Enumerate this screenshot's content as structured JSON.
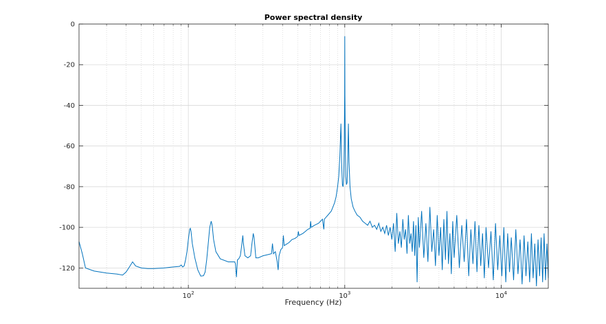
{
  "chart_data": {
    "type": "line",
    "title": "Power spectral density",
    "xlabel": "Frequency (Hz)",
    "ylabel": "",
    "x_scale": "log",
    "xlim": [
      20,
      20000
    ],
    "ylim": [
      -130,
      0
    ],
    "x_ticks": [
      100,
      1000,
      10000
    ],
    "x_tick_labels": [
      {
        "base": "10",
        "exp": "2"
      },
      {
        "base": "10",
        "exp": "3"
      },
      {
        "base": "10",
        "exp": "4"
      }
    ],
    "y_ticks": [
      0,
      -20,
      -40,
      -60,
      -80,
      -100,
      -120
    ],
    "y_tick_labels": [
      "0",
      "-20",
      "-40",
      "-60",
      "-80",
      "-100",
      "-120"
    ],
    "grid": true,
    "line_color": "#0072bd",
    "series": [
      {
        "points": [
          [
            20,
            -107
          ],
          [
            21,
            -113
          ],
          [
            22,
            -120
          ],
          [
            25,
            -121.5
          ],
          [
            30,
            -122.5
          ],
          [
            35,
            -123
          ],
          [
            38,
            -123.5
          ],
          [
            40,
            -122
          ],
          [
            42,
            -119.5
          ],
          [
            44,
            -117
          ],
          [
            46,
            -119
          ],
          [
            50,
            -120
          ],
          [
            55,
            -120.3
          ],
          [
            60,
            -120.3
          ],
          [
            70,
            -120
          ],
          [
            80,
            -119.5
          ],
          [
            88,
            -119.2
          ],
          [
            90,
            -118.5
          ],
          [
            92,
            -119.5
          ],
          [
            94,
            -119
          ],
          [
            96,
            -116
          ],
          [
            98,
            -112
          ],
          [
            100,
            -106
          ],
          [
            102,
            -101
          ],
          [
            103,
            -100.5
          ],
          [
            104,
            -102
          ],
          [
            106,
            -108
          ],
          [
            110,
            -115
          ],
          [
            115,
            -121
          ],
          [
            120,
            -124
          ],
          [
            125,
            -123.8
          ],
          [
            128,
            -122
          ],
          [
            131,
            -116
          ],
          [
            134,
            -108
          ],
          [
            137,
            -100
          ],
          [
            140,
            -97
          ],
          [
            142,
            -99
          ],
          [
            145,
            -106
          ],
          [
            150,
            -112
          ],
          [
            160,
            -115.5
          ],
          [
            180,
            -117
          ],
          [
            198,
            -117
          ],
          [
            200,
            -118
          ],
          [
            203,
            -124.5
          ],
          [
            206,
            -116
          ],
          [
            210,
            -115.5
          ],
          [
            215,
            -114
          ],
          [
            220,
            -108
          ],
          [
            223,
            -104
          ],
          [
            225,
            -108
          ],
          [
            230,
            -114
          ],
          [
            240,
            -115
          ],
          [
            250,
            -114
          ],
          [
            255,
            -108
          ],
          [
            260,
            -103
          ],
          [
            263,
            -105
          ],
          [
            266,
            -109
          ],
          [
            270,
            -115
          ],
          [
            280,
            -115
          ],
          [
            300,
            -114
          ],
          [
            320,
            -113.5
          ],
          [
            340,
            -113
          ],
          [
            345,
            -108
          ],
          [
            350,
            -113
          ],
          [
            360,
            -112
          ],
          [
            370,
            -117
          ],
          [
            375,
            -121
          ],
          [
            380,
            -114
          ],
          [
            390,
            -111
          ],
          [
            400,
            -110
          ],
          [
            405,
            -104
          ],
          [
            410,
            -109
          ],
          [
            420,
            -108.5
          ],
          [
            440,
            -107.5
          ],
          [
            460,
            -106
          ],
          [
            480,
            -105.5
          ],
          [
            500,
            -104.5
          ],
          [
            505,
            -102
          ],
          [
            510,
            -104
          ],
          [
            540,
            -103
          ],
          [
            560,
            -102
          ],
          [
            580,
            -101
          ],
          [
            600,
            -100.5
          ],
          [
            605,
            -97
          ],
          [
            610,
            -100
          ],
          [
            640,
            -99
          ],
          [
            660,
            -98.5
          ],
          [
            680,
            -98
          ],
          [
            700,
            -97
          ],
          [
            720,
            -96
          ],
          [
            735,
            -101
          ],
          [
            740,
            -96
          ],
          [
            760,
            -95
          ],
          [
            780,
            -94
          ],
          [
            800,
            -93
          ],
          [
            820,
            -92
          ],
          [
            840,
            -90
          ],
          [
            860,
            -88
          ],
          [
            880,
            -85
          ],
          [
            900,
            -80
          ],
          [
            915,
            -75
          ],
          [
            930,
            -65
          ],
          [
            945,
            -49
          ],
          [
            955,
            -68
          ],
          [
            965,
            -79
          ],
          [
            975,
            -80
          ],
          [
            985,
            -75
          ],
          [
            992,
            -60
          ],
          [
            998,
            -35
          ],
          [
            1000,
            -6
          ],
          [
            1002,
            -35
          ],
          [
            1008,
            -60
          ],
          [
            1015,
            -75
          ],
          [
            1025,
            -79
          ],
          [
            1035,
            -78
          ],
          [
            1045,
            -67
          ],
          [
            1055,
            -49
          ],
          [
            1065,
            -68
          ],
          [
            1080,
            -80
          ],
          [
            1100,
            -86
          ],
          [
            1130,
            -90
          ],
          [
            1160,
            -92
          ],
          [
            1200,
            -94
          ],
          [
            1250,
            -95
          ],
          [
            1300,
            -97
          ],
          [
            1350,
            -98
          ],
          [
            1400,
            -99
          ],
          [
            1450,
            -97
          ],
          [
            1500,
            -100
          ],
          [
            1550,
            -99
          ],
          [
            1600,
            -101
          ],
          [
            1650,
            -98
          ],
          [
            1700,
            -102
          ],
          [
            1750,
            -100
          ],
          [
            1800,
            -103
          ],
          [
            1850,
            -99
          ],
          [
            1900,
            -104
          ],
          [
            1950,
            -100
          ],
          [
            2000,
            -106
          ],
          [
            2050,
            -98
          ],
          [
            2100,
            -112
          ],
          [
            2150,
            -93
          ],
          [
            2200,
            -108
          ],
          [
            2250,
            -102
          ],
          [
            2300,
            -110
          ],
          [
            2350,
            -96
          ],
          [
            2400,
            -106
          ],
          [
            2450,
            -101
          ],
          [
            2500,
            -113
          ],
          [
            2550,
            -94
          ],
          [
            2600,
            -108
          ],
          [
            2650,
            -103
          ],
          [
            2700,
            -112
          ],
          [
            2750,
            -97
          ],
          [
            2800,
            -114
          ],
          [
            2850,
            -99
          ],
          [
            2900,
            -127
          ],
          [
            2950,
            -95
          ],
          [
            3000,
            -110
          ],
          [
            3100,
            -92
          ],
          [
            3200,
            -115
          ],
          [
            3300,
            -98
          ],
          [
            3400,
            -117
          ],
          [
            3500,
            -90
          ],
          [
            3600,
            -112
          ],
          [
            3700,
            -101
          ],
          [
            3800,
            -119
          ],
          [
            3900,
            -94
          ],
          [
            4000,
            -114
          ],
          [
            4100,
            -100
          ],
          [
            4200,
            -121
          ],
          [
            4300,
            -96
          ],
          [
            4400,
            -116
          ],
          [
            4500,
            -92
          ],
          [
            4600,
            -118
          ],
          [
            4700,
            -103
          ],
          [
            4800,
            -123
          ],
          [
            4900,
            -97
          ],
          [
            5000,
            -115
          ],
          [
            5200,
            -94
          ],
          [
            5400,
            -120
          ],
          [
            5600,
            -99
          ],
          [
            5800,
            -117
          ],
          [
            6000,
            -96
          ],
          [
            6200,
            -124
          ],
          [
            6400,
            -101
          ],
          [
            6600,
            -118
          ],
          [
            6800,
            -97
          ],
          [
            7000,
            -122
          ],
          [
            7200,
            -99
          ],
          [
            7400,
            -119
          ],
          [
            7600,
            -103
          ],
          [
            7800,
            -125
          ],
          [
            8000,
            -100
          ],
          [
            8300,
            -120
          ],
          [
            8600,
            -102
          ],
          [
            8900,
            -126
          ],
          [
            9200,
            -98
          ],
          [
            9500,
            -121
          ],
          [
            9800,
            -104
          ],
          [
            10100,
            -124
          ],
          [
            10400,
            -100
          ],
          [
            10700,
            -127
          ],
          [
            11000,
            -103
          ],
          [
            11300,
            -122
          ],
          [
            11600,
            -105
          ],
          [
            12000,
            -126
          ],
          [
            12400,
            -101
          ],
          [
            12800,
            -123
          ],
          [
            13200,
            -106
          ],
          [
            13600,
            -128
          ],
          [
            14000,
            -104
          ],
          [
            14400,
            -124
          ],
          [
            14800,
            -107
          ],
          [
            15200,
            -127
          ],
          [
            15600,
            -103
          ],
          [
            16000,
            -125
          ],
          [
            16400,
            -108
          ],
          [
            16800,
            -129
          ],
          [
            17200,
            -106
          ],
          [
            17600,
            -124
          ],
          [
            18000,
            -105
          ],
          [
            18400,
            -127
          ],
          [
            18800,
            -103
          ],
          [
            19200,
            -126
          ],
          [
            19600,
            -108
          ],
          [
            20000,
            -125
          ]
        ]
      }
    ]
  }
}
